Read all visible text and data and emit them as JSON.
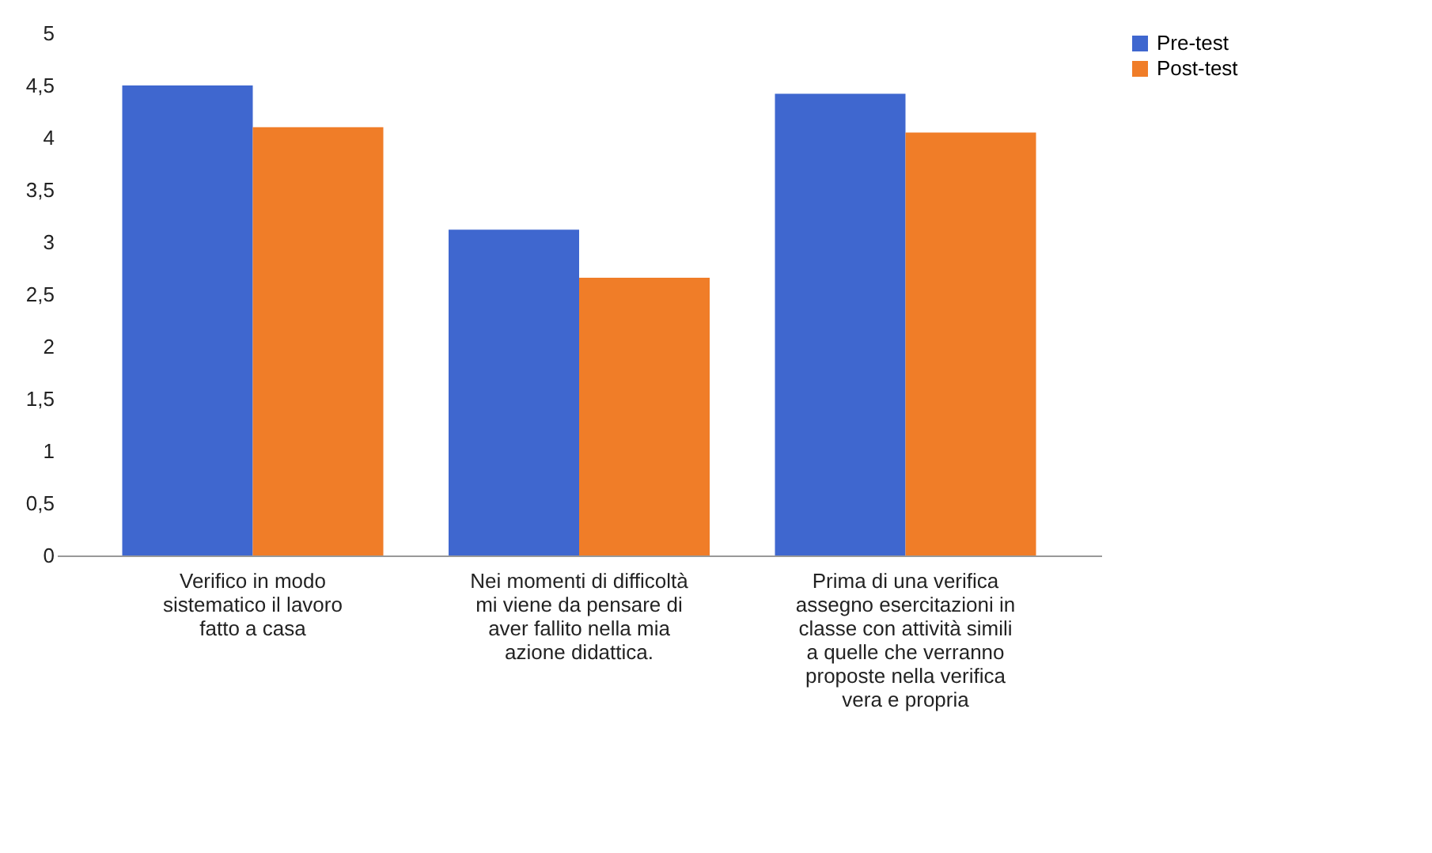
{
  "chart_data": {
    "type": "bar",
    "categories": [
      "Verifico in modo sistematico il lavoro fatto a casa",
      "Nei momenti di difficoltà mi viene da pensare di aver fallito nella mia azione didattica.",
      "Prima di una verifica assegno esercitazioni in classe con attività simili a quelle che verranno proposte nella verifica vera e propria"
    ],
    "series": [
      {
        "name": "Pre-test",
        "color": "#3f67cf",
        "values": [
          4.5,
          3.12,
          4.42
        ]
      },
      {
        "name": "Post-test",
        "color": "#f07d28",
        "values": [
          4.1,
          2.66,
          4.05
        ]
      }
    ],
    "ylim": [
      0,
      5
    ],
    "yticks": [
      0,
      {
        "value": 0.5,
        "label": "0,5"
      },
      1,
      {
        "value": 1.5,
        "label": "1,5"
      },
      2,
      {
        "value": 2.5,
        "label": "2,5"
      },
      3,
      {
        "value": 3.5,
        "label": "3,5"
      },
      4,
      {
        "value": 4.5,
        "label": "4,5"
      },
      5
    ],
    "grid": false,
    "legend": "right"
  }
}
